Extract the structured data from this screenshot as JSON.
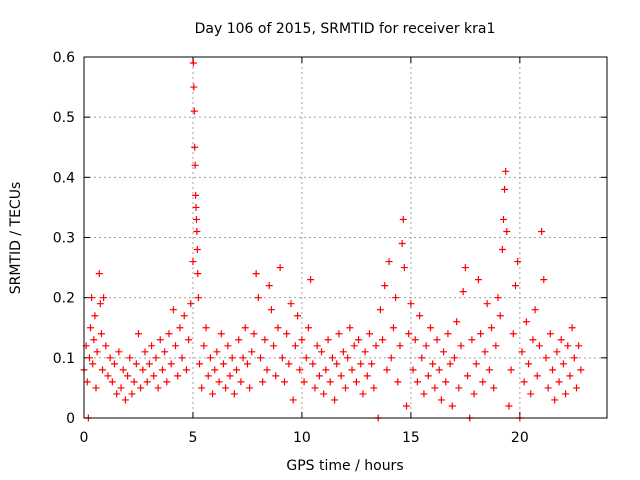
{
  "chart_data": {
    "type": "scatter",
    "title": "Day 106 of 2015, SRMTID for receiver kra1",
    "xlabel": "GPS time / hours",
    "ylabel": "SRMTID / TECUs",
    "xlim": [
      0,
      24
    ],
    "ylim": [
      0,
      0.6
    ],
    "xticks": [
      0,
      5,
      10,
      15,
      20
    ],
    "yticks": [
      0,
      0.1,
      0.2,
      0.3,
      0.4,
      0.5,
      0.6
    ],
    "xtick_labels": [
      "0",
      "5",
      "10",
      "15",
      "20"
    ],
    "ytick_labels": [
      "0",
      "0.1",
      "0.2",
      "0.3",
      "0.4",
      "0.5",
      "0.6"
    ],
    "grid": true,
    "marker": "+",
    "color": "#ff0000",
    "series": [
      {
        "name": "SRMTID",
        "points": [
          [
            0.0,
            0.08
          ],
          [
            0.1,
            0.12
          ],
          [
            0.15,
            0.06
          ],
          [
            0.2,
            0.0
          ],
          [
            0.25,
            0.1
          ],
          [
            0.3,
            0.15
          ],
          [
            0.35,
            0.2
          ],
          [
            0.4,
            0.09
          ],
          [
            0.45,
            0.13
          ],
          [
            0.5,
            0.17
          ],
          [
            0.55,
            0.05
          ],
          [
            0.6,
            0.11
          ],
          [
            0.7,
            0.24
          ],
          [
            0.75,
            0.19
          ],
          [
            0.8,
            0.14
          ],
          [
            0.85,
            0.08
          ],
          [
            0.9,
            0.2
          ],
          [
            1.0,
            0.12
          ],
          [
            1.1,
            0.07
          ],
          [
            1.2,
            0.1
          ],
          [
            1.3,
            0.06
          ],
          [
            1.4,
            0.09
          ],
          [
            1.5,
            0.04
          ],
          [
            1.6,
            0.11
          ],
          [
            1.7,
            0.05
          ],
          [
            1.8,
            0.08
          ],
          [
            1.9,
            0.03
          ],
          [
            2.0,
            0.07
          ],
          [
            2.1,
            0.1
          ],
          [
            2.2,
            0.04
          ],
          [
            2.3,
            0.06
          ],
          [
            2.4,
            0.09
          ],
          [
            2.5,
            0.14
          ],
          [
            2.6,
            0.05
          ],
          [
            2.7,
            0.08
          ],
          [
            2.8,
            0.11
          ],
          [
            2.9,
            0.06
          ],
          [
            3.0,
            0.09
          ],
          [
            3.1,
            0.12
          ],
          [
            3.2,
            0.07
          ],
          [
            3.3,
            0.1
          ],
          [
            3.4,
            0.05
          ],
          [
            3.5,
            0.13
          ],
          [
            3.6,
            0.08
          ],
          [
            3.7,
            0.11
          ],
          [
            3.8,
            0.06
          ],
          [
            3.9,
            0.14
          ],
          [
            4.0,
            0.09
          ],
          [
            4.1,
            0.18
          ],
          [
            4.2,
            0.12
          ],
          [
            4.3,
            0.07
          ],
          [
            4.4,
            0.15
          ],
          [
            4.5,
            0.1
          ],
          [
            4.6,
            0.17
          ],
          [
            4.7,
            0.08
          ],
          [
            4.8,
            0.13
          ],
          [
            4.9,
            0.19
          ],
          [
            5.0,
            0.26
          ],
          [
            5.02,
            0.59
          ],
          [
            5.04,
            0.55
          ],
          [
            5.06,
            0.51
          ],
          [
            5.08,
            0.45
          ],
          [
            5.1,
            0.42
          ],
          [
            5.12,
            0.37
          ],
          [
            5.14,
            0.35
          ],
          [
            5.16,
            0.33
          ],
          [
            5.18,
            0.31
          ],
          [
            5.2,
            0.28
          ],
          [
            5.22,
            0.24
          ],
          [
            5.25,
            0.2
          ],
          [
            5.3,
            0.09
          ],
          [
            5.4,
            0.05
          ],
          [
            5.5,
            0.12
          ],
          [
            5.6,
            0.15
          ],
          [
            5.7,
            0.07
          ],
          [
            5.8,
            0.1
          ],
          [
            5.9,
            0.04
          ],
          [
            6.0,
            0.08
          ],
          [
            6.1,
            0.11
          ],
          [
            6.2,
            0.06
          ],
          [
            6.3,
            0.14
          ],
          [
            6.4,
            0.09
          ],
          [
            6.5,
            0.05
          ],
          [
            6.6,
            0.12
          ],
          [
            6.7,
            0.07
          ],
          [
            6.8,
            0.1
          ],
          [
            6.9,
            0.04
          ],
          [
            7.0,
            0.08
          ],
          [
            7.1,
            0.13
          ],
          [
            7.2,
            0.06
          ],
          [
            7.3,
            0.1
          ],
          [
            7.4,
            0.15
          ],
          [
            7.5,
            0.09
          ],
          [
            7.6,
            0.05
          ],
          [
            7.7,
            0.11
          ],
          [
            7.8,
            0.14
          ],
          [
            7.9,
            0.24
          ],
          [
            8.0,
            0.2
          ],
          [
            8.1,
            0.1
          ],
          [
            8.2,
            0.06
          ],
          [
            8.3,
            0.13
          ],
          [
            8.4,
            0.08
          ],
          [
            8.5,
            0.22
          ],
          [
            8.6,
            0.18
          ],
          [
            8.7,
            0.12
          ],
          [
            8.8,
            0.07
          ],
          [
            8.9,
            0.15
          ],
          [
            9.0,
            0.25
          ],
          [
            9.1,
            0.1
          ],
          [
            9.2,
            0.06
          ],
          [
            9.3,
            0.14
          ],
          [
            9.4,
            0.09
          ],
          [
            9.5,
            0.19
          ],
          [
            9.6,
            0.03
          ],
          [
            9.7,
            0.12
          ],
          [
            9.8,
            0.17
          ],
          [
            9.9,
            0.08
          ],
          [
            10.0,
            0.13
          ],
          [
            10.1,
            0.06
          ],
          [
            10.2,
            0.1
          ],
          [
            10.3,
            0.15
          ],
          [
            10.4,
            0.23
          ],
          [
            10.5,
            0.09
          ],
          [
            10.6,
            0.05
          ],
          [
            10.7,
            0.12
          ],
          [
            10.8,
            0.07
          ],
          [
            10.9,
            0.11
          ],
          [
            11.0,
            0.04
          ],
          [
            11.1,
            0.08
          ],
          [
            11.2,
            0.13
          ],
          [
            11.3,
            0.06
          ],
          [
            11.4,
            0.1
          ],
          [
            11.5,
            0.03
          ],
          [
            11.6,
            0.09
          ],
          [
            11.7,
            0.14
          ],
          [
            11.8,
            0.07
          ],
          [
            11.9,
            0.11
          ],
          [
            12.0,
            0.05
          ],
          [
            12.1,
            0.1
          ],
          [
            12.2,
            0.15
          ],
          [
            12.3,
            0.08
          ],
          [
            12.4,
            0.12
          ],
          [
            12.5,
            0.06
          ],
          [
            12.6,
            0.13
          ],
          [
            12.7,
            0.09
          ],
          [
            12.8,
            0.04
          ],
          [
            12.9,
            0.11
          ],
          [
            13.0,
            0.07
          ],
          [
            13.1,
            0.14
          ],
          [
            13.2,
            0.09
          ],
          [
            13.3,
            0.05
          ],
          [
            13.4,
            0.12
          ],
          [
            13.5,
            0.0
          ],
          [
            13.6,
            0.18
          ],
          [
            13.7,
            0.13
          ],
          [
            13.8,
            0.22
          ],
          [
            13.9,
            0.08
          ],
          [
            14.0,
            0.26
          ],
          [
            14.1,
            0.1
          ],
          [
            14.2,
            0.15
          ],
          [
            14.3,
            0.2
          ],
          [
            14.4,
            0.06
          ],
          [
            14.5,
            0.12
          ],
          [
            14.6,
            0.29
          ],
          [
            14.65,
            0.33
          ],
          [
            14.7,
            0.25
          ],
          [
            14.8,
            0.02
          ],
          [
            14.9,
            0.14
          ],
          [
            15.0,
            0.19
          ],
          [
            15.1,
            0.08
          ],
          [
            15.2,
            0.13
          ],
          [
            15.3,
            0.06
          ],
          [
            15.4,
            0.17
          ],
          [
            15.5,
            0.1
          ],
          [
            15.6,
            0.04
          ],
          [
            15.7,
            0.12
          ],
          [
            15.8,
            0.07
          ],
          [
            15.9,
            0.15
          ],
          [
            16.0,
            0.09
          ],
          [
            16.1,
            0.05
          ],
          [
            16.2,
            0.13
          ],
          [
            16.3,
            0.08
          ],
          [
            16.4,
            0.03
          ],
          [
            16.5,
            0.11
          ],
          [
            16.6,
            0.06
          ],
          [
            16.7,
            0.14
          ],
          [
            16.8,
            0.09
          ],
          [
            16.9,
            0.02
          ],
          [
            17.0,
            0.1
          ],
          [
            17.1,
            0.16
          ],
          [
            17.2,
            0.05
          ],
          [
            17.3,
            0.12
          ],
          [
            17.4,
            0.21
          ],
          [
            17.5,
            0.25
          ],
          [
            17.6,
            0.07
          ],
          [
            17.7,
            0.0
          ],
          [
            17.8,
            0.13
          ],
          [
            17.9,
            0.04
          ],
          [
            18.0,
            0.09
          ],
          [
            18.1,
            0.23
          ],
          [
            18.2,
            0.14
          ],
          [
            18.3,
            0.06
          ],
          [
            18.4,
            0.11
          ],
          [
            18.5,
            0.19
          ],
          [
            18.6,
            0.08
          ],
          [
            18.7,
            0.15
          ],
          [
            18.8,
            0.05
          ],
          [
            18.9,
            0.12
          ],
          [
            19.0,
            0.2
          ],
          [
            19.1,
            0.17
          ],
          [
            19.2,
            0.28
          ],
          [
            19.25,
            0.33
          ],
          [
            19.3,
            0.38
          ],
          [
            19.35,
            0.41
          ],
          [
            19.4,
            0.31
          ],
          [
            19.5,
            0.02
          ],
          [
            19.6,
            0.08
          ],
          [
            19.7,
            0.14
          ],
          [
            19.8,
            0.22
          ],
          [
            19.9,
            0.26
          ],
          [
            20.0,
            0.0
          ],
          [
            20.1,
            0.11
          ],
          [
            20.2,
            0.06
          ],
          [
            20.3,
            0.16
          ],
          [
            20.4,
            0.09
          ],
          [
            20.5,
            0.04
          ],
          [
            20.6,
            0.13
          ],
          [
            20.7,
            0.18
          ],
          [
            20.8,
            0.07
          ],
          [
            20.9,
            0.12
          ],
          [
            21.0,
            0.31
          ],
          [
            21.1,
            0.23
          ],
          [
            21.2,
            0.1
          ],
          [
            21.3,
            0.05
          ],
          [
            21.4,
            0.14
          ],
          [
            21.5,
            0.08
          ],
          [
            21.6,
            0.03
          ],
          [
            21.7,
            0.11
          ],
          [
            21.8,
            0.06
          ],
          [
            21.9,
            0.13
          ],
          [
            22.0,
            0.09
          ],
          [
            22.1,
            0.04
          ],
          [
            22.2,
            0.12
          ],
          [
            22.3,
            0.07
          ],
          [
            22.4,
            0.15
          ],
          [
            22.5,
            0.1
          ],
          [
            22.6,
            0.05
          ],
          [
            22.7,
            0.12
          ],
          [
            22.8,
            0.08
          ]
        ]
      }
    ]
  }
}
